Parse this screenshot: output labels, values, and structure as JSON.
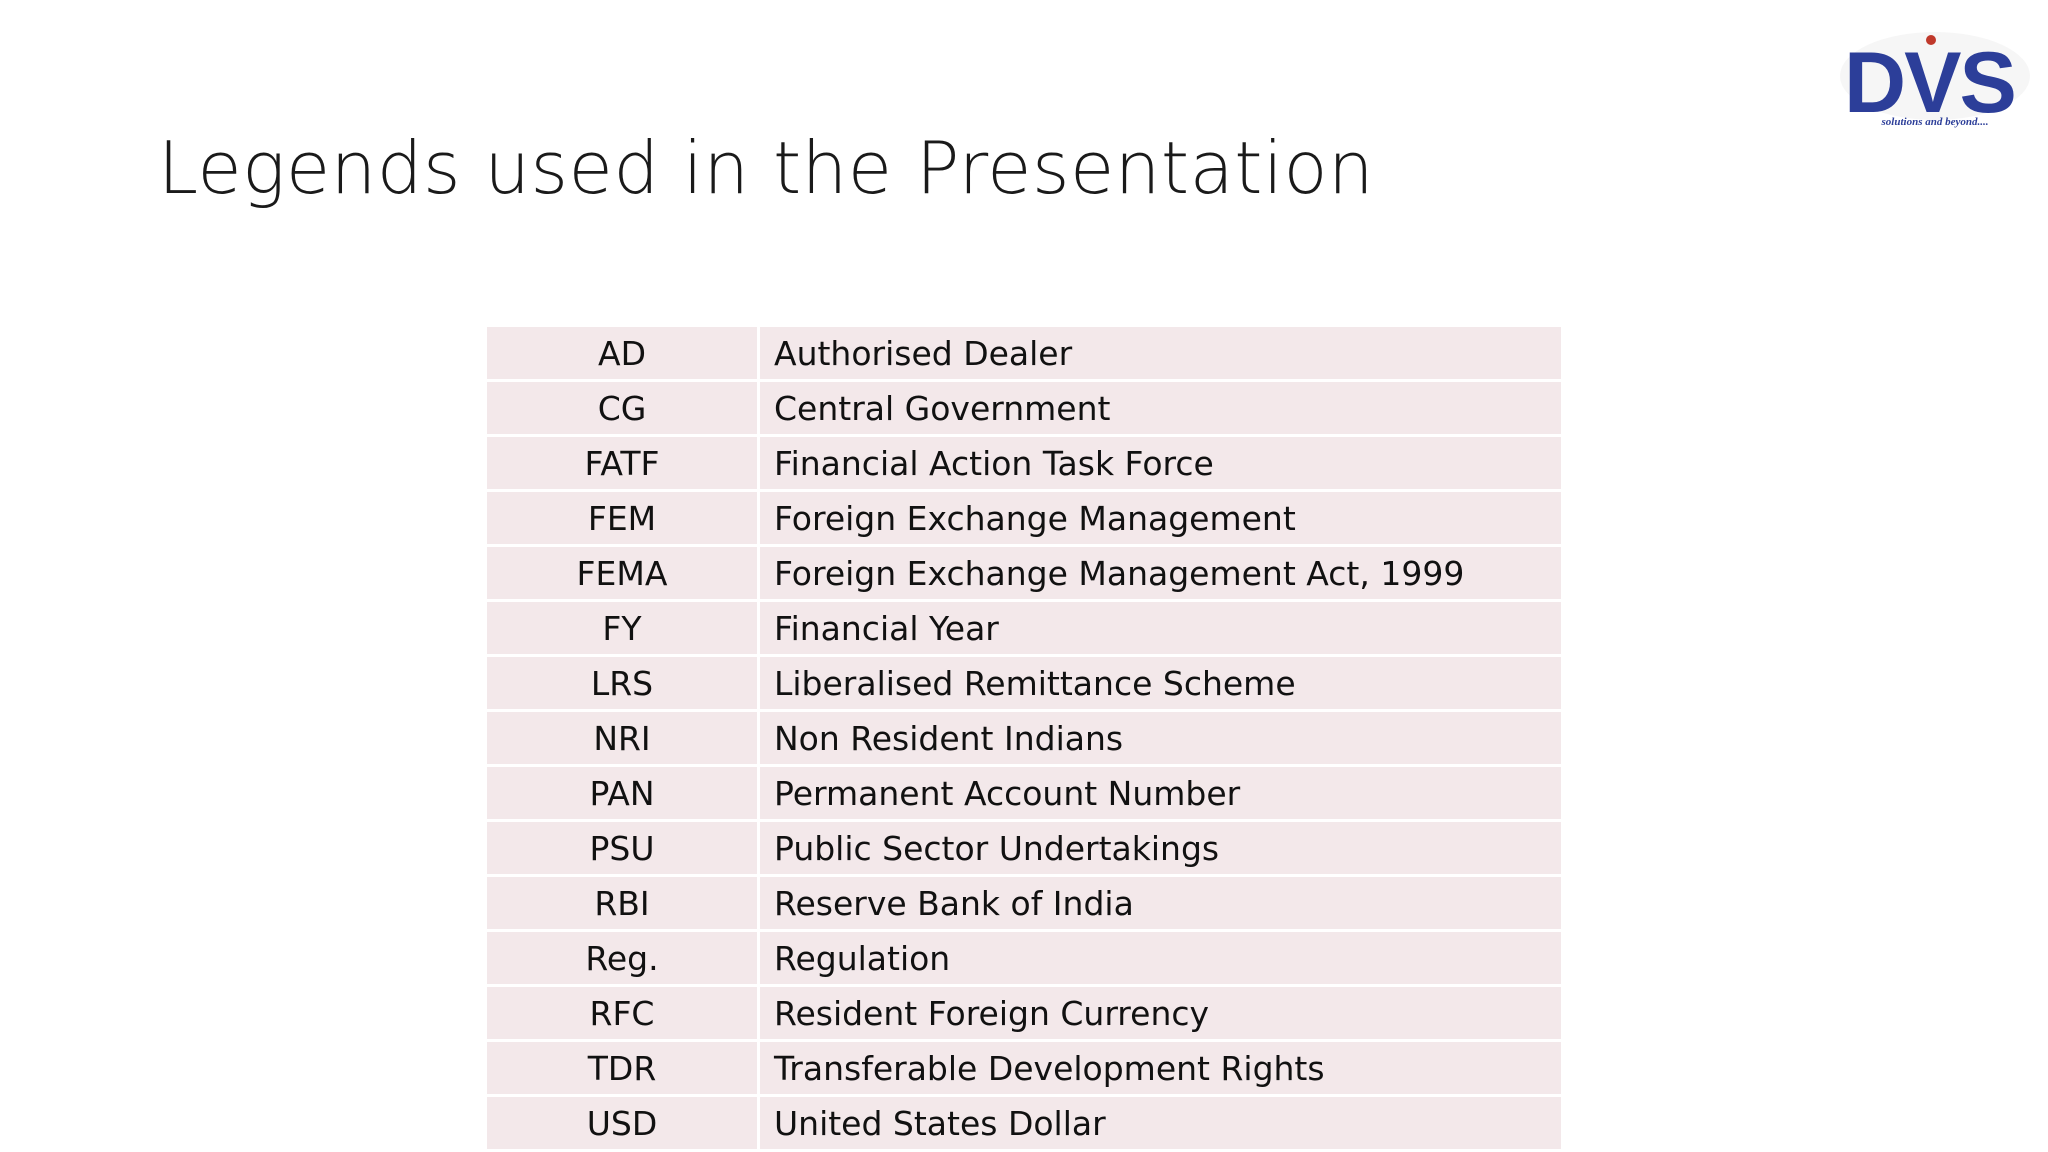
{
  "slide": {
    "title": "Legends used in the Presentation"
  },
  "logo": {
    "brand": "DVS",
    "tagline": "solutions and beyond....",
    "color": "#2c3e99",
    "dot_color": "#c0392b"
  },
  "legends": [
    {
      "abbr": "AD",
      "full": "Authorised Dealer"
    },
    {
      "abbr": "CG",
      "full": "Central Government"
    },
    {
      "abbr": "FATF",
      "full": "Financial Action Task Force"
    },
    {
      "abbr": "FEM",
      "full": "Foreign Exchange Management"
    },
    {
      "abbr": "FEMA",
      "full": "Foreign Exchange Management Act, 1999"
    },
    {
      "abbr": "FY",
      "full": "Financial Year"
    },
    {
      "abbr": "LRS",
      "full": "Liberalised Remittance Scheme"
    },
    {
      "abbr": "NRI",
      "full": "Non Resident Indians"
    },
    {
      "abbr": "PAN",
      "full": "Permanent Account Number"
    },
    {
      "abbr": "PSU",
      "full": "Public Sector Undertakings"
    },
    {
      "abbr": "RBI",
      "full": "Reserve Bank of India"
    },
    {
      "abbr": "Reg.",
      "full": "Regulation"
    },
    {
      "abbr": "RFC",
      "full": "Resident Foreign Currency"
    },
    {
      "abbr": "TDR",
      "full": "Transferable Development Rights"
    },
    {
      "abbr": "USD",
      "full": "United States Dollar"
    }
  ],
  "colors": {
    "row_background": "#f3e8ea",
    "text": "#111111"
  }
}
